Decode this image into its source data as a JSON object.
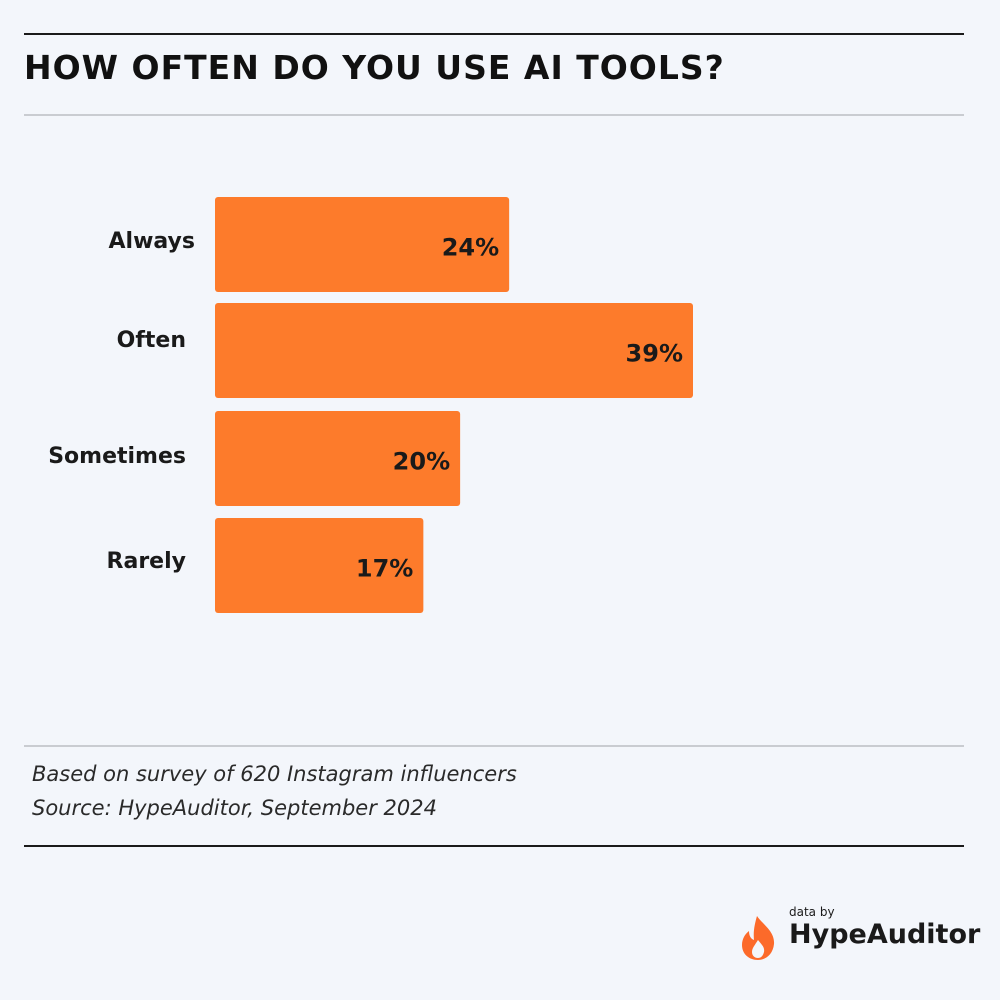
{
  "chart_data": {
    "type": "bar",
    "orientation": "horizontal",
    "title": "HOW OFTEN DO YOU USE AI TOOLS?",
    "categories": [
      "Always",
      "Often",
      "Sometimes",
      "Rarely"
    ],
    "values": [
      24,
      39,
      20,
      17
    ],
    "value_labels": [
      "24%",
      "39%",
      "20%",
      "17%"
    ],
    "xlim": [
      0,
      39
    ],
    "grid": false,
    "legend": "none"
  },
  "notes": {
    "line1": "Based on survey of 620 Instagram influencers",
    "line2": "Source: HypeAuditor, September 2024"
  },
  "brand": {
    "prefix": "data by",
    "name": "HypeAuditor",
    "logo_icon": "flame-icon"
  },
  "colors": {
    "bar": "#fd7b2b",
    "logo": "#fc6a2a",
    "background": "#f3f6fb"
  }
}
